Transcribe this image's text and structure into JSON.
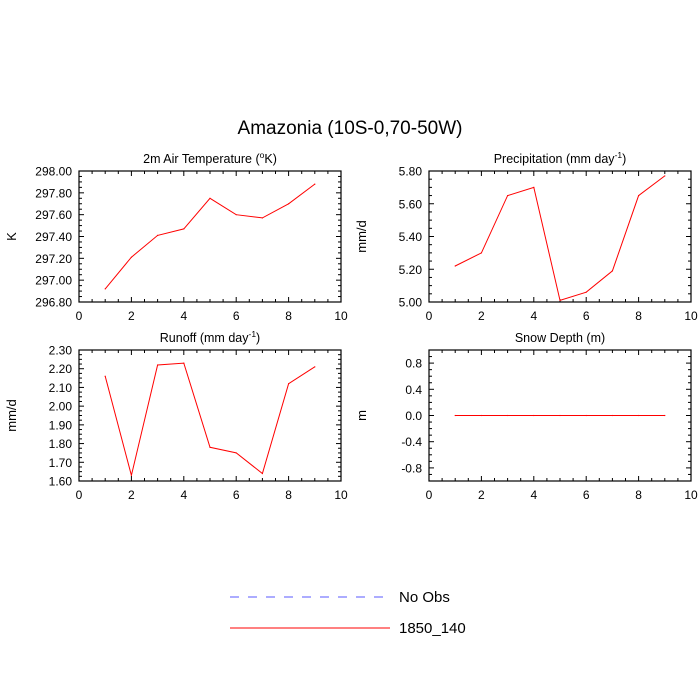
{
  "main_title": "Amazonia (10S-0,70-50W)",
  "legend": [
    {
      "label": "No Obs",
      "color": "#0000ff",
      "style": "dashed"
    },
    {
      "label": "1850_140",
      "color": "#ff0000",
      "style": "solid"
    }
  ],
  "chart_data": [
    {
      "type": "line",
      "title": "2m Air Temperature (",
      "title_sup": "o",
      "title_after": "K)",
      "ylabel": "K",
      "xlabel": "",
      "xlim": [
        0,
        10
      ],
      "ylim": [
        296.8,
        298.0
      ],
      "xticks": [
        0,
        2,
        4,
        6,
        8,
        10
      ],
      "yticks": [
        296.8,
        297.0,
        297.2,
        297.4,
        297.6,
        297.8,
        298.0
      ],
      "ytick_labels": [
        "296.80",
        "297.00",
        "297.20",
        "297.40",
        "297.60",
        "297.80",
        "298.00"
      ],
      "x": [
        1,
        2,
        3,
        4,
        5,
        6,
        7,
        8,
        9
      ],
      "series": [
        {
          "name": "1850_140",
          "color": "#ff0000",
          "values": [
            296.92,
            297.21,
            297.41,
            297.47,
            297.75,
            297.6,
            297.57,
            297.7,
            297.88
          ]
        }
      ]
    },
    {
      "type": "line",
      "title": "Precipitation (mm day",
      "title_sup": "-1",
      "title_after": ")",
      "ylabel": "mm/d",
      "xlabel": "",
      "xlim": [
        0,
        10
      ],
      "ylim": [
        5.0,
        5.8
      ],
      "xticks": [
        0,
        2,
        4,
        6,
        8,
        10
      ],
      "yticks": [
        5.0,
        5.2,
        5.4,
        5.6,
        5.8
      ],
      "ytick_labels": [
        "5.00",
        "5.20",
        "5.40",
        "5.60",
        "5.80"
      ],
      "x": [
        1,
        2,
        3,
        4,
        5,
        6,
        7,
        8,
        9
      ],
      "series": [
        {
          "name": "1850_140",
          "color": "#ff0000",
          "values": [
            5.22,
            5.3,
            5.65,
            5.7,
            5.01,
            5.06,
            5.19,
            5.65,
            5.77
          ]
        }
      ]
    },
    {
      "type": "line",
      "title": "Runoff (mm day",
      "title_sup": "-1",
      "title_after": ")",
      "ylabel": "mm/d",
      "xlabel": "",
      "xlim": [
        0,
        10
      ],
      "ylim": [
        1.6,
        2.3
      ],
      "xticks": [
        0,
        2,
        4,
        6,
        8,
        10
      ],
      "yticks": [
        1.6,
        1.7,
        1.8,
        1.9,
        2.0,
        2.1,
        2.2,
        2.3
      ],
      "ytick_labels": [
        "1.60",
        "1.70",
        "1.80",
        "1.90",
        "2.00",
        "2.10",
        "2.20",
        "2.30"
      ],
      "x": [
        1,
        2,
        3,
        4,
        5,
        6,
        7,
        8,
        9
      ],
      "series": [
        {
          "name": "1850_140",
          "color": "#ff0000",
          "values": [
            2.16,
            1.63,
            2.22,
            2.23,
            1.78,
            1.75,
            1.64,
            2.12,
            2.21
          ]
        }
      ]
    },
    {
      "type": "line",
      "title": "Snow Depth (m)",
      "title_sup": "",
      "title_after": "",
      "ylabel": "m",
      "xlabel": "",
      "xlim": [
        0,
        10
      ],
      "ylim": [
        -1.0,
        1.0
      ],
      "xticks": [
        0,
        2,
        4,
        6,
        8,
        10
      ],
      "yticks": [
        -0.8,
        -0.4,
        0.0,
        0.4,
        0.8
      ],
      "ytick_labels": [
        "-0.8",
        "-0.4",
        "0.0",
        "0.4",
        "0.8"
      ],
      "x": [
        1,
        2,
        3,
        4,
        5,
        6,
        7,
        8,
        9
      ],
      "series": [
        {
          "name": "1850_140",
          "color": "#ff0000",
          "values": [
            0,
            0,
            0,
            0,
            0,
            0,
            0,
            0,
            0
          ]
        }
      ]
    }
  ]
}
